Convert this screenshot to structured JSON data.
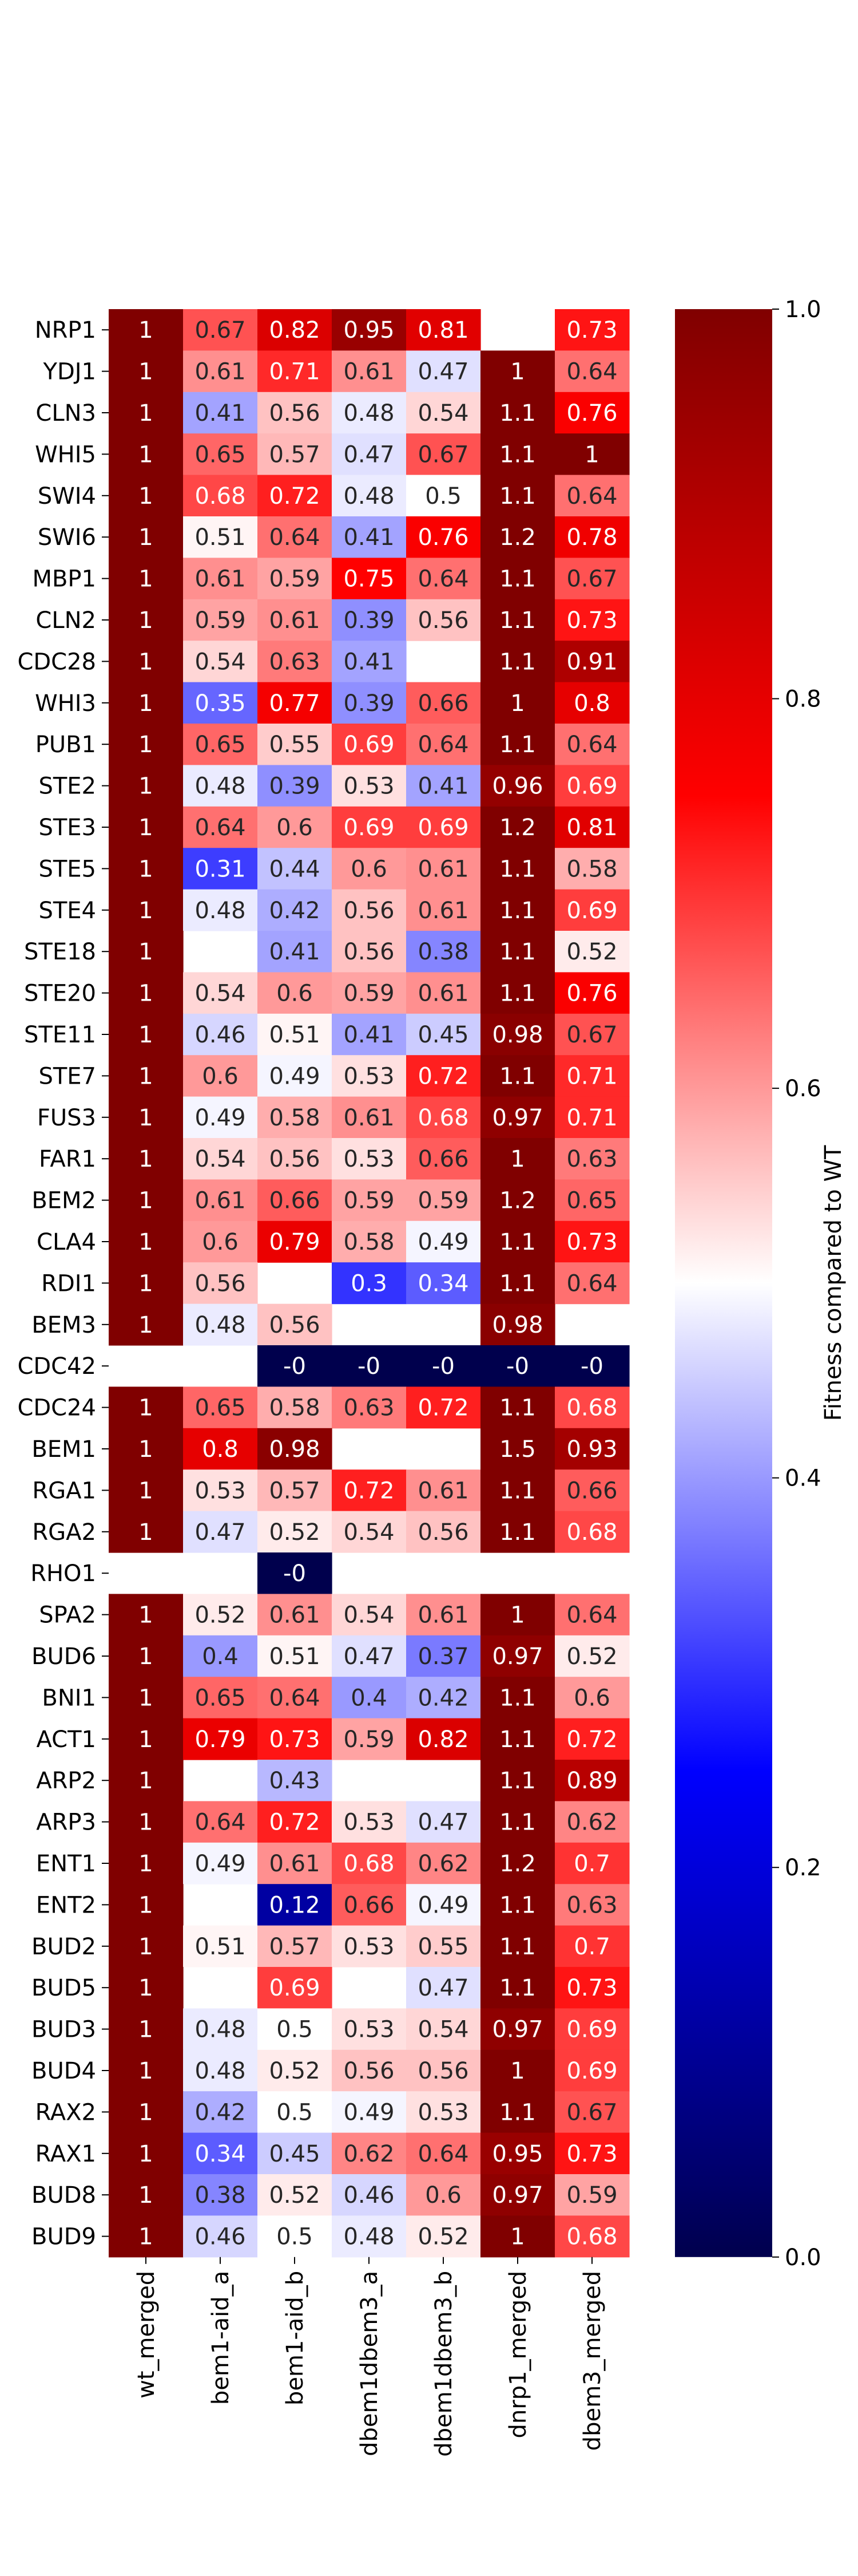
{
  "chart_data": {
    "type": "heatmap",
    "title": "",
    "xlabel": "",
    "ylabel": "",
    "columns": [
      "wt_merged",
      "bem1-aid_a",
      "bem1-aid_b",
      "dbem1dbem3_a",
      "dbem1dbem3_b",
      "dnrp1_merged",
      "dbem3_merged"
    ],
    "rows": [
      "NRP1",
      "YDJ1",
      "CLN3",
      "WHI5",
      "SWI4",
      "SWI6",
      "MBP1",
      "CLN2",
      "CDC28",
      "WHI3",
      "PUB1",
      "STE2",
      "STE3",
      "STE5",
      "STE4",
      "STE18",
      "STE20",
      "STE11",
      "STE7",
      "FUS3",
      "FAR1",
      "BEM2",
      "CLA4",
      "RDI1",
      "BEM3",
      "CDC42",
      "CDC24",
      "BEM1",
      "RGA1",
      "RGA2",
      "RHO1",
      "SPA2",
      "BUD6",
      "BNI1",
      "ACT1",
      "ARP2",
      "ARP3",
      "ENT1",
      "ENT2",
      "BUD2",
      "BUD5",
      "BUD3",
      "BUD4",
      "RAX2",
      "RAX1",
      "BUD8",
      "BUD9"
    ],
    "values": [
      [
        1,
        0.67,
        0.82,
        0.95,
        0.81,
        null,
        0.73
      ],
      [
        1,
        0.61,
        0.71,
        0.61,
        0.47,
        1,
        0.64
      ],
      [
        1,
        0.41,
        0.56,
        0.48,
        0.54,
        1.1,
        0.76
      ],
      [
        1,
        0.65,
        0.57,
        0.47,
        0.67,
        1.1,
        1
      ],
      [
        1,
        0.68,
        0.72,
        0.48,
        0.5,
        1.1,
        0.64
      ],
      [
        1,
        0.51,
        0.64,
        0.41,
        0.76,
        1.2,
        0.78
      ],
      [
        1,
        0.61,
        0.59,
        0.75,
        0.64,
        1.1,
        0.67
      ],
      [
        1,
        0.59,
        0.61,
        0.39,
        0.56,
        1.1,
        0.73
      ],
      [
        1,
        0.54,
        0.63,
        0.41,
        null,
        1.1,
        0.91
      ],
      [
        1,
        0.35,
        0.77,
        0.39,
        0.66,
        1,
        0.8
      ],
      [
        1,
        0.65,
        0.55,
        0.69,
        0.64,
        1.1,
        0.64
      ],
      [
        1,
        0.48,
        0.39,
        0.53,
        0.41,
        0.96,
        0.69
      ],
      [
        1,
        0.64,
        0.6,
        0.69,
        0.69,
        1.2,
        0.81
      ],
      [
        1,
        0.31,
        0.44,
        0.6,
        0.61,
        1.1,
        0.58
      ],
      [
        1,
        0.48,
        0.42,
        0.56,
        0.61,
        1.1,
        0.69
      ],
      [
        1,
        null,
        0.41,
        0.56,
        0.38,
        1.1,
        0.52
      ],
      [
        1,
        0.54,
        0.6,
        0.59,
        0.61,
        1.1,
        0.76
      ],
      [
        1,
        0.46,
        0.51,
        0.41,
        0.45,
        0.98,
        0.67
      ],
      [
        1,
        0.6,
        0.49,
        0.53,
        0.72,
        1.1,
        0.71
      ],
      [
        1,
        0.49,
        0.58,
        0.61,
        0.68,
        0.97,
        0.71
      ],
      [
        1,
        0.54,
        0.56,
        0.53,
        0.66,
        1,
        0.63
      ],
      [
        1,
        0.61,
        0.66,
        0.59,
        0.59,
        1.2,
        0.65
      ],
      [
        1,
        0.6,
        0.79,
        0.58,
        0.49,
        1.1,
        0.73
      ],
      [
        1,
        0.56,
        null,
        0.3,
        0.34,
        1.1,
        0.64
      ],
      [
        1,
        0.48,
        0.56,
        null,
        null,
        0.98,
        null
      ],
      [
        null,
        null,
        0,
        0,
        0,
        0,
        0
      ],
      [
        1,
        0.65,
        0.58,
        0.63,
        0.72,
        1.1,
        0.68
      ],
      [
        1,
        0.8,
        0.98,
        null,
        null,
        1.5,
        0.93
      ],
      [
        1,
        0.53,
        0.57,
        0.72,
        0.61,
        1.1,
        0.66
      ],
      [
        1,
        0.47,
        0.52,
        0.54,
        0.56,
        1.1,
        0.68
      ],
      [
        null,
        null,
        0,
        null,
        null,
        null,
        null
      ],
      [
        1,
        0.52,
        0.61,
        0.54,
        0.61,
        1,
        0.64
      ],
      [
        1,
        0.4,
        0.51,
        0.47,
        0.37,
        0.97,
        0.52
      ],
      [
        1,
        0.65,
        0.64,
        0.4,
        0.42,
        1.1,
        0.6
      ],
      [
        1,
        0.79,
        0.73,
        0.59,
        0.82,
        1.1,
        0.72
      ],
      [
        1,
        null,
        0.43,
        null,
        null,
        1.1,
        0.89
      ],
      [
        1,
        0.64,
        0.72,
        0.53,
        0.47,
        1.1,
        0.62
      ],
      [
        1,
        0.49,
        0.61,
        0.68,
        0.62,
        1.2,
        0.7
      ],
      [
        1,
        null,
        0.12,
        0.66,
        0.49,
        1.1,
        0.63
      ],
      [
        1,
        0.51,
        0.57,
        0.53,
        0.55,
        1.1,
        0.7
      ],
      [
        1,
        null,
        0.69,
        null,
        0.47,
        1.1,
        0.73
      ],
      [
        1,
        0.48,
        0.5,
        0.53,
        0.54,
        0.97,
        0.69
      ],
      [
        1,
        0.48,
        0.52,
        0.56,
        0.56,
        1,
        0.69
      ],
      [
        1,
        0.42,
        0.5,
        0.49,
        0.53,
        1.1,
        0.67
      ],
      [
        1,
        0.34,
        0.45,
        0.62,
        0.64,
        0.95,
        0.73
      ],
      [
        1,
        0.38,
        0.52,
        0.46,
        0.6,
        0.97,
        0.59
      ],
      [
        1,
        0.46,
        0.5,
        0.48,
        0.52,
        1,
        0.68
      ]
    ],
    "colormap": "seismic",
    "colormap_stops": [
      "#00004d",
      "#0000ff",
      "#ffffff",
      "#ff0000",
      "#800000"
    ],
    "vmin": 0,
    "vmax": 1,
    "colorbar_ticks": [
      0.0,
      0.2,
      0.4,
      0.6,
      0.8,
      1.0
    ],
    "colorbar_label": "Fitness compared to WT",
    "annotated": true
  }
}
